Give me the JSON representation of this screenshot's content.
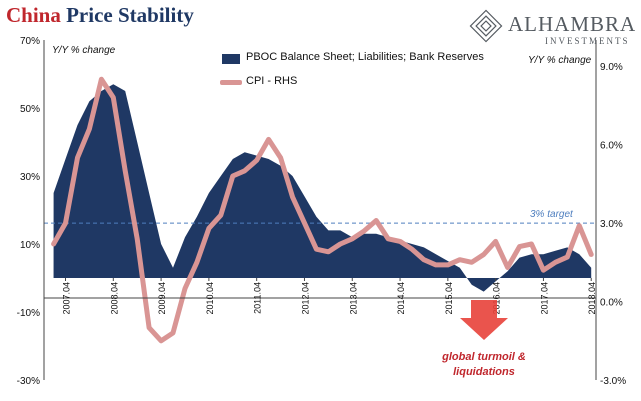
{
  "title": {
    "word1": "China",
    "word2": "Price Stability"
  },
  "logo": {
    "name": "ALHAMBRA",
    "subtitle": "INVESTMENTS"
  },
  "left_axis_unit": "Y/Y % change",
  "right_axis_unit": "Y/Y % change",
  "legend": {
    "bars_label": "PBOC Balance Sheet; Liabilities; Bank Reserves",
    "line_label": "CPI - RHS"
  },
  "target_label": "3% target",
  "annotation": {
    "line1": "global turmoil &",
    "line2": "liquidations"
  },
  "colors": {
    "area": "#1f3864",
    "line": "#d99594",
    "target": "#4f7fbf",
    "arrow": "#e8413a",
    "title_accent": "#c0272d"
  },
  "chart_data": {
    "type": "area",
    "grid": false,
    "legend_position": "top",
    "x_ticks": [
      "2007.04",
      "2008.04",
      "2009.04",
      "2010.04",
      "2011.04",
      "2012.04",
      "2013.04",
      "2014.04",
      "2015.04",
      "2016.04",
      "2017.04",
      "2018.04"
    ],
    "y_left_ticks": [
      "70%",
      "50%",
      "30%",
      "10%",
      "-10%",
      "-30%"
    ],
    "y_left_range": [
      -30,
      70
    ],
    "y_right_ticks": [
      "9.0%",
      "6.0%",
      "3.0%",
      "0.0%",
      "-3.0%"
    ],
    "y_right_range": [
      -3,
      10
    ],
    "target_value": 3,
    "x": [
      2007.0,
      2007.25,
      2007.5,
      2007.75,
      2008.0,
      2008.25,
      2008.5,
      2008.75,
      2009.0,
      2009.25,
      2009.5,
      2009.75,
      2010.0,
      2010.25,
      2010.5,
      2010.75,
      2011.0,
      2011.25,
      2011.5,
      2011.75,
      2012.0,
      2012.25,
      2012.5,
      2012.75,
      2013.0,
      2013.25,
      2013.5,
      2013.75,
      2014.0,
      2014.25,
      2014.5,
      2014.75,
      2015.0,
      2015.25,
      2015.5,
      2015.75,
      2016.0,
      2016.25,
      2016.5,
      2016.75,
      2017.0,
      2017.25,
      2017.5,
      2017.75,
      2018.0,
      2018.25
    ],
    "series": [
      {
        "name": "PBOC Balance Sheet; Liabilities; Bank Reserves",
        "axis": "left",
        "values": [
          25,
          35,
          45,
          52,
          55,
          57,
          55,
          40,
          25,
          10,
          3,
          12,
          18,
          25,
          30,
          35,
          37,
          36,
          35,
          33,
          30,
          24,
          18,
          14,
          14,
          12,
          13,
          13,
          12,
          11,
          10,
          9,
          7,
          5,
          3,
          -2,
          -4,
          -1,
          2,
          6,
          7,
          7,
          8,
          9,
          7,
          3
        ]
      },
      {
        "name": "CPI - RHS",
        "axis": "right",
        "values": [
          2.2,
          3.0,
          5.5,
          6.6,
          8.5,
          7.8,
          5.0,
          2.4,
          -1.0,
          -1.5,
          -1.2,
          0.5,
          1.5,
          2.8,
          3.3,
          4.8,
          5.0,
          5.4,
          6.2,
          5.5,
          4.0,
          3.0,
          2.0,
          1.9,
          2.2,
          2.4,
          2.7,
          3.1,
          2.4,
          2.3,
          2.0,
          1.6,
          1.4,
          1.4,
          1.6,
          1.5,
          1.8,
          2.3,
          1.3,
          2.1,
          2.2,
          1.2,
          1.5,
          1.7,
          2.9,
          1.8
        ]
      }
    ]
  }
}
